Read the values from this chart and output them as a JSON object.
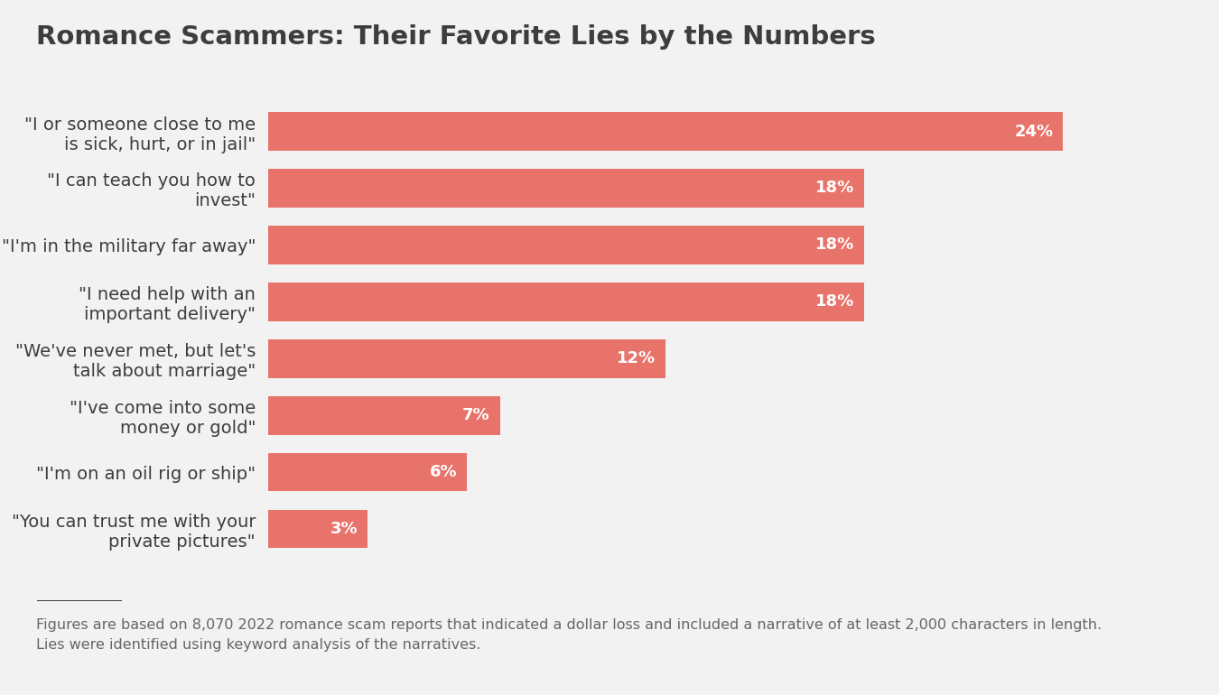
{
  "title": "Romance Scammers: Their Favorite Lies by the Numbers",
  "categories": [
    "\"You can trust me with your\nprivate pictures\"",
    "\"I'm on an oil rig or ship\"",
    "\"I've come into some\nmoney or gold\"",
    "\"We've never met, but let's\ntalk about marriage\"",
    "\"I need help with an\nimportant delivery\"",
    "\"I'm in the military far away\"",
    "\"I can teach you how to\ninvest\"",
    "\"I or someone close to me\nis sick, hurt, or in jail\""
  ],
  "values": [
    3,
    6,
    7,
    12,
    18,
    18,
    18,
    24
  ],
  "bar_color": "#E8736A",
  "background_color": "#F2F2F2",
  "label_color": "#FFFFFF",
  "title_color": "#3D3D3D",
  "footnote_color": "#666666",
  "footnote_line": "Figures are based on 8,070 2022 romance scam reports that indicated a dollar loss and included a narrative of at least 2,000 characters in length.\nLies were identified using keyword analysis of the narratives.",
  "title_fontsize": 21,
  "label_fontsize": 13,
  "tick_fontsize": 14,
  "footnote_fontsize": 11.5,
  "xlim": [
    0,
    26.5
  ]
}
